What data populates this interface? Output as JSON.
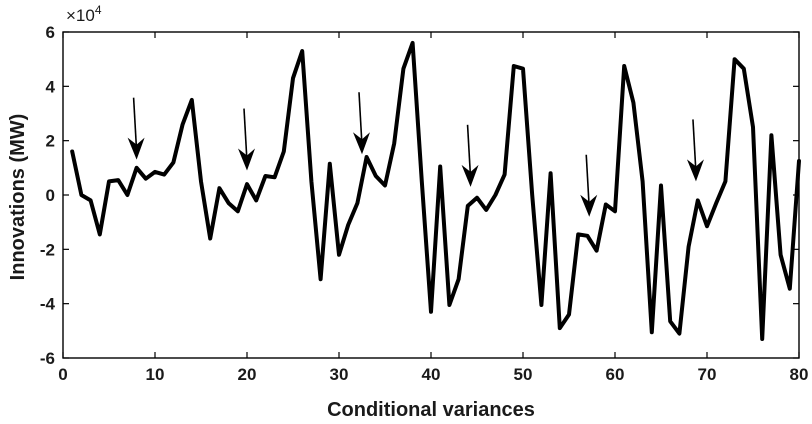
{
  "chart_data": {
    "type": "line",
    "xlabel": "Conditional variances",
    "ylabel": "Innovations (MW)",
    "y_exponent_label": "×10",
    "y_exponent_power": "4",
    "xlim": [
      0,
      80
    ],
    "ylim": [
      -6,
      6
    ],
    "x_ticks": [
      0,
      10,
      20,
      30,
      40,
      50,
      60,
      70,
      80
    ],
    "y_ticks": [
      -6,
      -4,
      -2,
      0,
      2,
      4,
      6
    ],
    "x_tick_labels": [
      "0",
      "10",
      "20",
      "30",
      "40",
      "50",
      "60",
      "70",
      "80"
    ],
    "y_tick_labels": [
      "-6",
      "-4",
      "-2",
      "0",
      "2",
      "4",
      "6"
    ],
    "grid": false,
    "series_color": "#000000",
    "series": [
      {
        "x": [
          1,
          2,
          3,
          4,
          5,
          6,
          7,
          8,
          9,
          10,
          11,
          12,
          13,
          14,
          15,
          16,
          17,
          18,
          19,
          20,
          21,
          22,
          23,
          24,
          25,
          26,
          27,
          28,
          29,
          30,
          31,
          32,
          33,
          34,
          35,
          36,
          37,
          38,
          39,
          40,
          41,
          42,
          43,
          44,
          45,
          46,
          47,
          48,
          49,
          50,
          51,
          52,
          53,
          54,
          55,
          56,
          57,
          58,
          59,
          60,
          61,
          62,
          63,
          64,
          65,
          66,
          67,
          68,
          69,
          70,
          71,
          72,
          73,
          74,
          75,
          76,
          77,
          78,
          79,
          80
        ],
        "values": [
          1.6,
          0.0,
          -0.2,
          -1.45,
          0.5,
          0.55,
          0.0,
          1.0,
          0.6,
          0.85,
          0.75,
          1.2,
          2.6,
          3.5,
          0.5,
          -1.6,
          0.25,
          -0.3,
          -0.6,
          0.4,
          -0.2,
          0.7,
          0.65,
          1.6,
          4.3,
          5.3,
          0.5,
          -3.1,
          1.15,
          -2.2,
          -1.1,
          -0.3,
          1.4,
          0.7,
          0.35,
          1.9,
          4.65,
          5.6,
          0.5,
          -4.3,
          1.05,
          -4.05,
          -3.1,
          -0.4,
          -0.1,
          -0.55,
          0.0,
          0.75,
          4.75,
          4.65,
          0.0,
          -4.05,
          0.8,
          -4.9,
          -4.4,
          -1.45,
          -1.5,
          -2.05,
          -0.35,
          -0.6,
          4.75,
          3.4,
          0.5,
          -5.05,
          0.35,
          -4.65,
          -5.1,
          -1.9,
          -0.2,
          -1.15,
          -0.3,
          0.5,
          5.0,
          4.65,
          2.5,
          -5.3,
          2.2,
          -2.2,
          -3.45,
          1.25
        ]
      }
    ],
    "annotations": [
      {
        "type": "arrow",
        "x": 8,
        "y_tip": 1.3
      },
      {
        "type": "arrow",
        "x": 20,
        "y_tip": 0.9
      },
      {
        "type": "arrow",
        "x": 32.5,
        "y_tip": 1.5
      },
      {
        "type": "arrow",
        "x": 44.3,
        "y_tip": 0.3
      },
      {
        "type": "arrow",
        "x": 57.2,
        "y_tip": -0.8
      },
      {
        "type": "arrow",
        "x": 68.8,
        "y_tip": 0.5
      }
    ]
  }
}
